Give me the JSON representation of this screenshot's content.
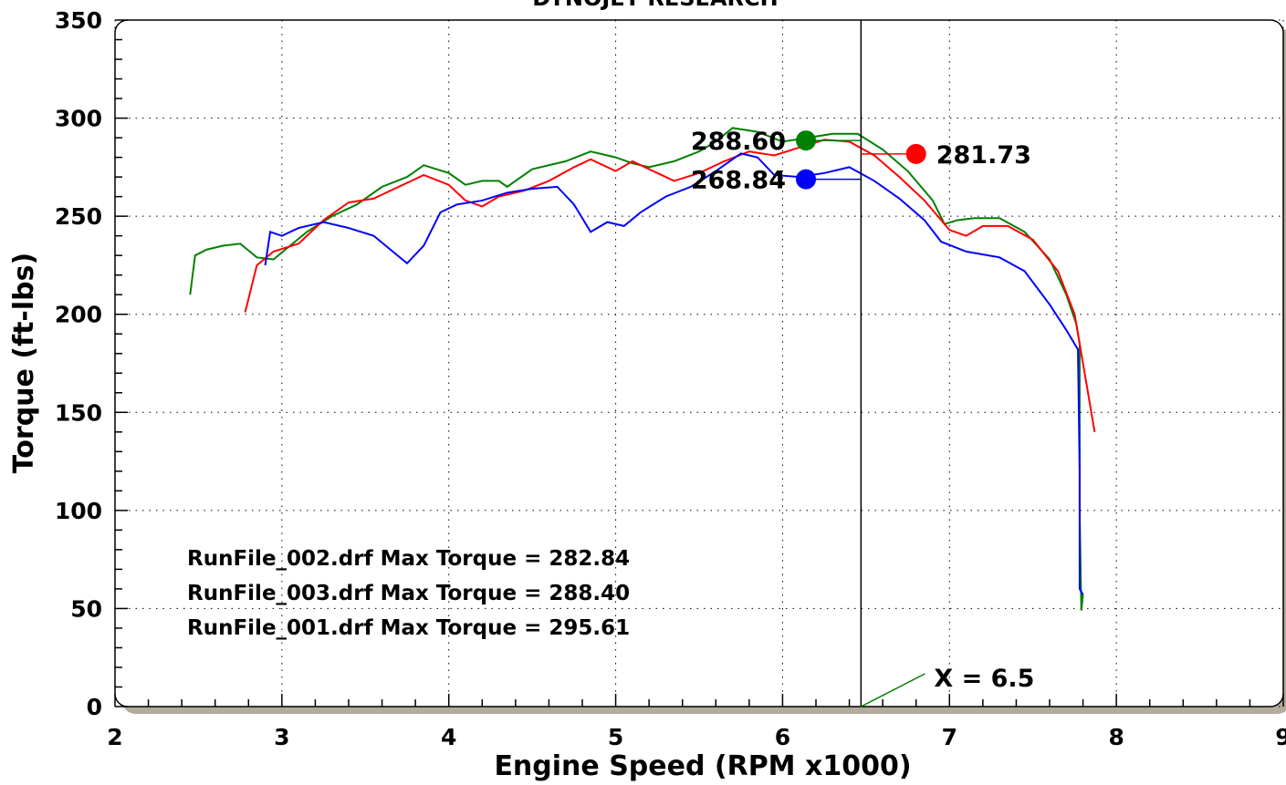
{
  "chart_data": {
    "type": "line",
    "title": "DYNOJET RESEARCH",
    "xlabel": "Engine Speed (RPM x1000)",
    "ylabel": "Torque (ft-lbs)",
    "xlim": [
      2,
      9
    ],
    "xticks": [
      2,
      3,
      4,
      5,
      6,
      7,
      8,
      9
    ],
    "ylim": [
      0,
      350
    ],
    "yticks": [
      0,
      50,
      100,
      150,
      200,
      250,
      300,
      350
    ],
    "grid": true,
    "series": [
      {
        "color": "#008000",
        "x": [
          2.45,
          2.48,
          2.55,
          2.65,
          2.75,
          2.85,
          2.95,
          3.05,
          3.15,
          3.3,
          3.45,
          3.6,
          3.75,
          3.85,
          4.0,
          4.1,
          4.2,
          4.3,
          4.35,
          4.5,
          4.7,
          4.85,
          5.0,
          5.1,
          5.2,
          5.35,
          5.5,
          5.6,
          5.7,
          5.85,
          6.0,
          6.15,
          6.3,
          6.45,
          6.6,
          6.75,
          6.9,
          6.97,
          7.05,
          7.15,
          7.3,
          7.45,
          7.6,
          7.7,
          7.76,
          7.78,
          7.78,
          7.79,
          7.8
        ],
        "values": [
          210,
          230,
          233,
          235,
          236,
          229,
          228,
          235,
          242,
          250,
          256,
          265,
          270,
          276,
          272,
          266,
          268,
          268,
          265,
          274,
          278,
          283,
          280,
          277,
          275,
          278,
          283,
          288,
          295,
          293,
          288,
          290,
          292,
          292,
          284,
          273,
          258,
          246,
          248,
          249,
          249,
          242,
          228,
          210,
          195,
          185,
          100,
          49,
          57
        ]
      },
      {
        "color": "#ff0000",
        "x": [
          2.78,
          2.85,
          2.95,
          3.1,
          3.25,
          3.4,
          3.55,
          3.7,
          3.85,
          4.0,
          4.1,
          4.2,
          4.3,
          4.45,
          4.6,
          4.75,
          4.85,
          5.0,
          5.1,
          5.25,
          5.35,
          5.5,
          5.65,
          5.8,
          5.95,
          6.1,
          6.25,
          6.4,
          6.55,
          6.7,
          6.85,
          7.0,
          7.1,
          7.2,
          7.35,
          7.5,
          7.65,
          7.75,
          7.78,
          7.87
        ],
        "values": [
          201,
          225,
          232,
          236,
          248,
          257,
          259,
          265,
          271,
          266,
          258,
          255,
          260,
          263,
          268,
          275,
          279,
          273,
          278,
          272,
          268,
          272,
          278,
          283,
          281,
          285,
          289,
          288,
          281,
          270,
          258,
          243,
          240,
          245,
          245,
          238,
          222,
          200,
          185,
          140
        ]
      },
      {
        "color": "#0000ff",
        "x": [
          2.9,
          2.93,
          3.0,
          3.1,
          3.25,
          3.4,
          3.55,
          3.65,
          3.75,
          3.85,
          3.95,
          4.05,
          4.2,
          4.35,
          4.5,
          4.65,
          4.75,
          4.85,
          4.95,
          5.05,
          5.15,
          5.3,
          5.45,
          5.6,
          5.75,
          5.85,
          5.95,
          6.1,
          6.25,
          6.4,
          6.55,
          6.7,
          6.85,
          6.95,
          7.1,
          7.3,
          7.45,
          7.6,
          7.7,
          7.77,
          7.78,
          7.78,
          7.8
        ],
        "values": [
          225,
          242,
          240,
          244,
          247,
          244,
          240,
          233,
          226,
          235,
          252,
          256,
          258,
          262,
          264,
          265,
          256,
          242,
          247,
          245,
          252,
          260,
          265,
          273,
          282,
          280,
          271,
          270,
          272,
          275,
          268,
          259,
          248,
          237,
          232,
          229,
          222,
          205,
          192,
          182,
          120,
          60,
          57
        ]
      }
    ],
    "cursor": {
      "x": 6.47,
      "label": "X = 6.5"
    },
    "markers": [
      {
        "x": 6.14,
        "y": 288.6,
        "label": "288.60",
        "color": "#008000"
      },
      {
        "x": 6.14,
        "y": 268.84,
        "label": "268.84",
        "color": "#0000ff"
      },
      {
        "x": 6.8,
        "y": 281.73,
        "label": "281.73",
        "color": "#ff0000"
      }
    ],
    "annotations": [
      "RunFile_002.drf Max Torque = 282.84",
      "RunFile_003.drf Max Torque = 288.40",
      "RunFile_001.drf Max Torque = 295.61"
    ]
  }
}
